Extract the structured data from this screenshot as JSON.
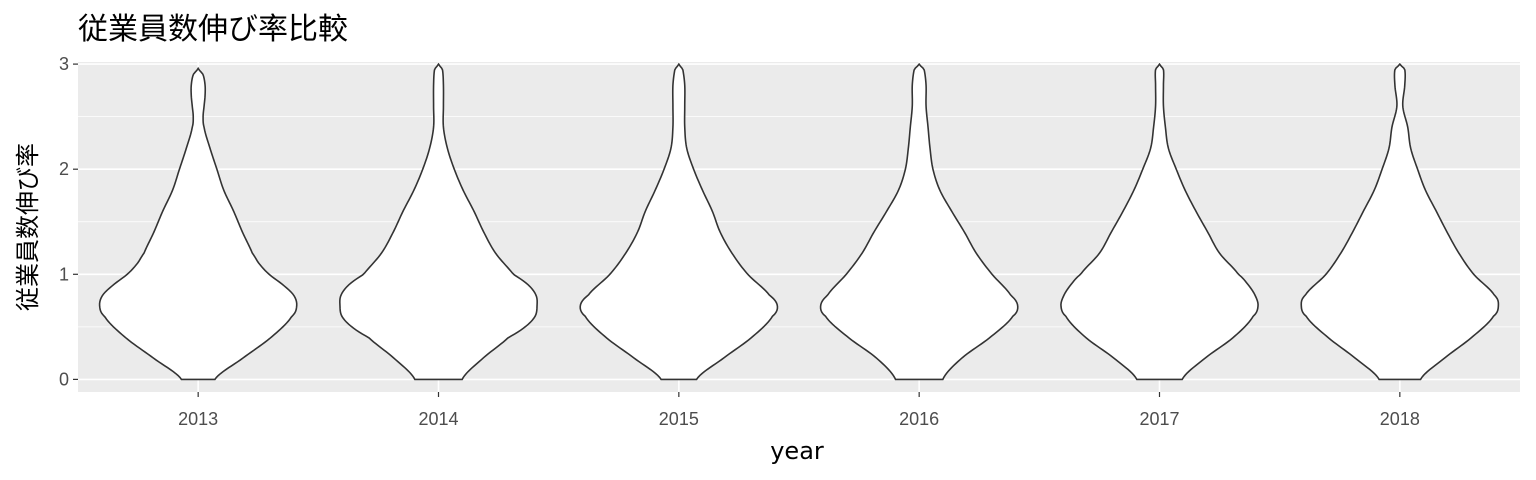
{
  "chart_data": {
    "type": "violin",
    "title": "従業員数伸び率比較",
    "xlabel": "year",
    "ylabel": "従業員数伸び率",
    "categories": [
      "2013",
      "2014",
      "2015",
      "2016",
      "2017",
      "2018"
    ],
    "ylim": [
      -0.12,
      3.02
    ],
    "yticks": [
      0,
      1,
      2,
      3
    ],
    "grid": true,
    "legend": "none",
    "series": [
      {
        "category": "2013",
        "min": 0,
        "max": 2.96,
        "density": [
          [
            0.0,
            0.17
          ],
          [
            0.2,
            0.45
          ],
          [
            0.4,
            0.74
          ],
          [
            0.6,
            0.95
          ],
          [
            0.7,
            1.0
          ],
          [
            0.8,
            0.97
          ],
          [
            0.9,
            0.86
          ],
          [
            1.0,
            0.72
          ],
          [
            1.1,
            0.62
          ],
          [
            1.2,
            0.55
          ],
          [
            1.4,
            0.45
          ],
          [
            1.6,
            0.36
          ],
          [
            1.8,
            0.26
          ],
          [
            2.0,
            0.19
          ],
          [
            2.2,
            0.12
          ],
          [
            2.4,
            0.06
          ],
          [
            2.5,
            0.05
          ],
          [
            2.6,
            0.06
          ],
          [
            2.7,
            0.07
          ],
          [
            2.8,
            0.07
          ],
          [
            2.9,
            0.05
          ],
          [
            2.96,
            0.0
          ]
        ]
      },
      {
        "category": "2014",
        "min": 0,
        "max": 3.0,
        "density": [
          [
            0.0,
            0.24
          ],
          [
            0.2,
            0.45
          ],
          [
            0.4,
            0.71
          ],
          [
            0.5,
            0.88
          ],
          [
            0.6,
            0.98
          ],
          [
            0.7,
            1.0
          ],
          [
            0.8,
            0.99
          ],
          [
            0.9,
            0.91
          ],
          [
            1.0,
            0.76
          ],
          [
            1.2,
            0.58
          ],
          [
            1.4,
            0.46
          ],
          [
            1.6,
            0.36
          ],
          [
            1.8,
            0.25
          ],
          [
            2.0,
            0.16
          ],
          [
            2.2,
            0.09
          ],
          [
            2.4,
            0.05
          ],
          [
            2.6,
            0.05
          ],
          [
            2.8,
            0.05
          ],
          [
            2.95,
            0.04
          ],
          [
            3.0,
            0.0
          ]
        ]
      },
      {
        "category": "2015",
        "min": 0,
        "max": 3.0,
        "density": [
          [
            0.0,
            0.18
          ],
          [
            0.2,
            0.45
          ],
          [
            0.4,
            0.74
          ],
          [
            0.6,
            0.95
          ],
          [
            0.7,
            1.0
          ],
          [
            0.8,
            0.92
          ],
          [
            1.0,
            0.7
          ],
          [
            1.2,
            0.54
          ],
          [
            1.4,
            0.42
          ],
          [
            1.6,
            0.34
          ],
          [
            1.8,
            0.24
          ],
          [
            2.0,
            0.15
          ],
          [
            2.2,
            0.08
          ],
          [
            2.4,
            0.06
          ],
          [
            2.6,
            0.06
          ],
          [
            2.8,
            0.06
          ],
          [
            2.95,
            0.04
          ],
          [
            3.0,
            0.0
          ]
        ]
      },
      {
        "category": "2016",
        "min": 0,
        "max": 3.0,
        "density": [
          [
            0.0,
            0.24
          ],
          [
            0.2,
            0.43
          ],
          [
            0.4,
            0.72
          ],
          [
            0.6,
            0.95
          ],
          [
            0.7,
            1.0
          ],
          [
            0.8,
            0.93
          ],
          [
            1.0,
            0.74
          ],
          [
            1.2,
            0.58
          ],
          [
            1.4,
            0.46
          ],
          [
            1.6,
            0.33
          ],
          [
            1.8,
            0.21
          ],
          [
            2.0,
            0.14
          ],
          [
            2.2,
            0.11
          ],
          [
            2.4,
            0.09
          ],
          [
            2.6,
            0.07
          ],
          [
            2.8,
            0.07
          ],
          [
            2.95,
            0.05
          ],
          [
            3.0,
            0.0
          ]
        ]
      },
      {
        "category": "2017",
        "min": 0,
        "max": 3.0,
        "density": [
          [
            0.0,
            0.23
          ],
          [
            0.2,
            0.46
          ],
          [
            0.4,
            0.75
          ],
          [
            0.6,
            0.95
          ],
          [
            0.7,
            1.0
          ],
          [
            0.8,
            0.97
          ],
          [
            0.9,
            0.9
          ],
          [
            1.0,
            0.8
          ],
          [
            1.2,
            0.61
          ],
          [
            1.4,
            0.49
          ],
          [
            1.6,
            0.37
          ],
          [
            1.8,
            0.26
          ],
          [
            2.0,
            0.17
          ],
          [
            2.2,
            0.09
          ],
          [
            2.4,
            0.06
          ],
          [
            2.6,
            0.04
          ],
          [
            2.8,
            0.04
          ],
          [
            2.95,
            0.04
          ],
          [
            3.0,
            0.0
          ]
        ]
      },
      {
        "category": "2018",
        "min": 0,
        "max": 3.0,
        "density": [
          [
            0.0,
            0.21
          ],
          [
            0.2,
            0.45
          ],
          [
            0.4,
            0.73
          ],
          [
            0.6,
            0.95
          ],
          [
            0.7,
            1.0
          ],
          [
            0.8,
            0.96
          ],
          [
            1.0,
            0.75
          ],
          [
            1.2,
            0.6
          ],
          [
            1.4,
            0.48
          ],
          [
            1.6,
            0.37
          ],
          [
            1.8,
            0.26
          ],
          [
            2.0,
            0.18
          ],
          [
            2.2,
            0.11
          ],
          [
            2.4,
            0.08
          ],
          [
            2.6,
            0.03
          ],
          [
            2.8,
            0.05
          ],
          [
            2.95,
            0.05
          ],
          [
            3.0,
            0.0
          ]
        ]
      }
    ]
  }
}
